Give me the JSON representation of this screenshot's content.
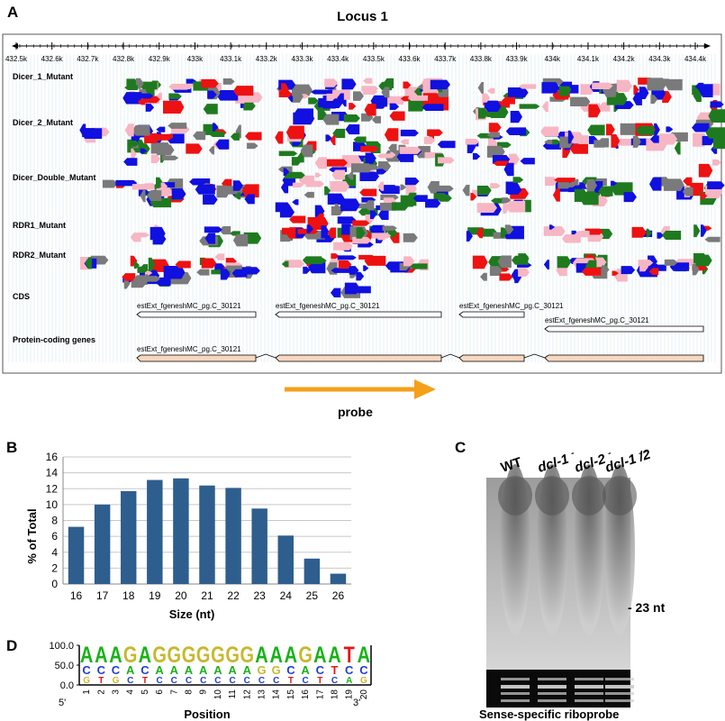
{
  "panel_a": {
    "letter": "A",
    "title": "Locus 1",
    "axis_ticks": [
      "432.5k",
      "432.6k",
      "432.7k",
      "432.8k",
      "432.9k",
      "433k",
      "433.1k",
      "433.2k",
      "433.3k",
      "433.4k",
      "433.5k",
      "433.6k",
      "433.7k",
      "433.8k",
      "433.9k",
      "434k",
      "434.1k",
      "434.2k",
      "434.3k",
      "434.4k"
    ],
    "tracks": [
      "Dicer_1_Mutant",
      "Dicer_2_Mutant",
      "Dicer_Double_Mutant",
      "RDR1_Mutant",
      "RDR2_Mutant",
      "CDS",
      "Protein-coding genes"
    ],
    "gene_labels": {
      "cds_1": "estExt_fgeneshMC_pg.C_30121",
      "cds_2": "estExt_fgeneshMC_pg.C_30121",
      "cds_3": "estExt_fgeneshMC_pg.C_30121",
      "cds_4": "estExt_fgeneshMC_pg.C_30121",
      "gene_1": "estExt_fgeneshMC_pg.C_30121"
    },
    "probe_label": "probe",
    "colors": {
      "blue": "#1010e0",
      "red": "#ee1111",
      "green": "#1f7a1f",
      "pink": "#f7b6c4",
      "gray": "#7a7a7a",
      "probe": "#f5a01a",
      "gene_fill": "#f7d7bf"
    }
  },
  "panel_b": {
    "letter": "B"
  },
  "panel_c": {
    "letter": "C",
    "lane_labels": [
      "WT",
      "dcl-1",
      "dcl-2",
      "dcl-1 /2"
    ],
    "lane_superscripts": [
      "",
      "-",
      "-",
      "- -"
    ],
    "marker": "- 23 nt",
    "caption": "Sense-specific riboprobe"
  },
  "panel_d": {
    "letter": "D",
    "y_ticks": [
      "100.0",
      "50.0",
      "0.0"
    ],
    "positions": [
      "1",
      "2",
      "3",
      "4",
      "5",
      "6",
      "7",
      "8",
      "9",
      "10",
      "11",
      "12",
      "13",
      "14",
      "15",
      "16",
      "17",
      "18",
      "19",
      "20"
    ],
    "top_letters": [
      "A",
      "A",
      "A",
      "G",
      "A",
      "G",
      "G",
      "G",
      "G",
      "G",
      "G",
      "G",
      "A",
      "A",
      "A",
      "G",
      "A",
      "A",
      "T",
      "A"
    ],
    "left_end": "5'",
    "right_end": "3'",
    "xlabel": "Position"
  },
  "chart_data": {
    "type": "bar",
    "categories": [
      "16",
      "17",
      "18",
      "19",
      "20",
      "21",
      "22",
      "23",
      "24",
      "25",
      "26"
    ],
    "values": [
      7.2,
      10.0,
      11.7,
      13.1,
      13.3,
      12.4,
      12.1,
      9.5,
      6.1,
      3.2,
      1.3
    ],
    "ylim": [
      0,
      16
    ],
    "y_ticks": [
      "0",
      "2",
      "4",
      "6",
      "8",
      "10",
      "12",
      "14",
      "16"
    ],
    "xlabel": "Size (nt)",
    "ylabel": "% of Total",
    "bar_color": "#2e5e8e",
    "grid": true
  }
}
